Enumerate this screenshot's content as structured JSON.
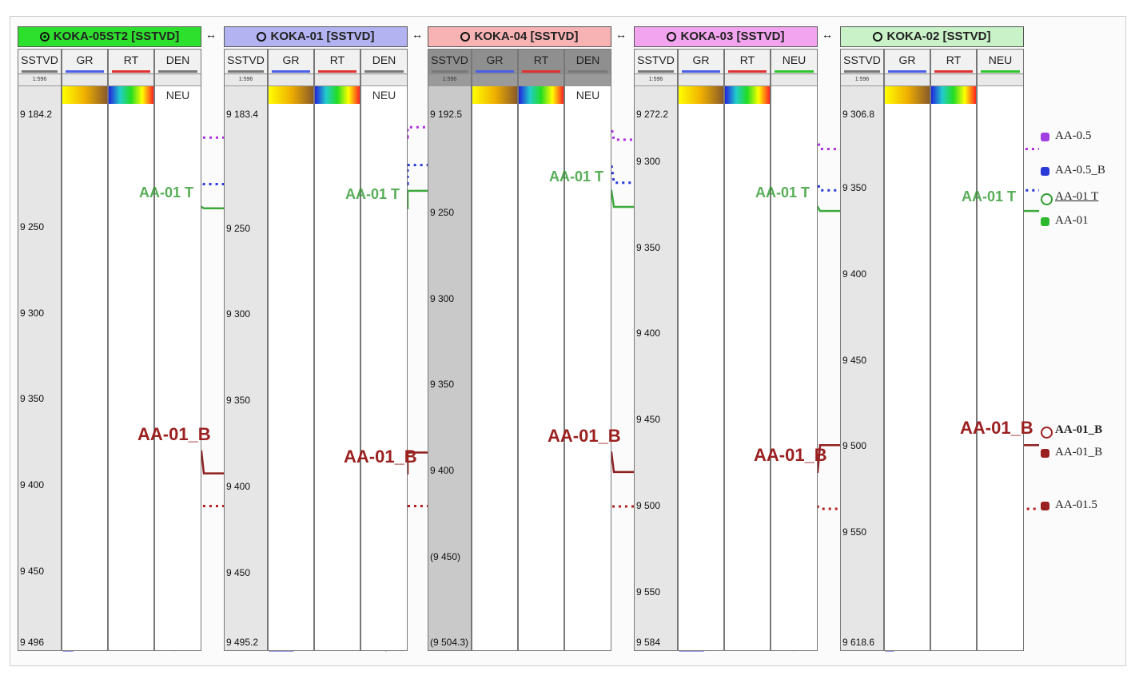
{
  "chart_data": {
    "type": "well-log-correlation",
    "title": "",
    "wells": [
      {
        "name": "KOKA-05ST2 [SSTVD]",
        "header_color": "#2ee02e",
        "symbol": "deviated",
        "tracks": [
          "SSTVD",
          "GR",
          "RT",
          "DEN"
        ],
        "extra_track_label": "NEU",
        "scale_label": "1:596",
        "depth_top": "9 184.2",
        "depth_bottom": "9 496",
        "top_val": 9184.2,
        "bottom_val": 9496,
        "ticks": [
          {
            "label": "9 250",
            "v": 9250
          },
          {
            "label": "9 300",
            "v": 9300
          },
          {
            "label": "9 350",
            "v": 9350
          },
          {
            "label": "9 400",
            "v": 9400
          },
          {
            "label": "9 450",
            "v": 9450
          }
        ],
        "tops": {
          "AA-0.5": 9198,
          "AA-0.5_B": 9224,
          "AA-01 T": 9238,
          "AA-01_B": 9380,
          "AA-01.5": 9412
        }
      },
      {
        "name": "KOKA-01 [SSTVD]",
        "header_color": "#b3b3f2",
        "symbol": "vertical",
        "tracks": [
          "SSTVD",
          "GR",
          "RT",
          "DEN"
        ],
        "extra_track_label": "NEU",
        "scale_label": "1:596",
        "depth_top": "9 183.4",
        "depth_bottom": "9 495.2",
        "top_val": 9183.4,
        "bottom_val": 9495.2,
        "ticks": [
          {
            "label": "9 250",
            "v": 9250
          },
          {
            "label": "9 300",
            "v": 9300
          },
          {
            "label": "9 350",
            "v": 9350
          },
          {
            "label": "9 400",
            "v": 9400
          },
          {
            "label": "9 450",
            "v": 9450
          }
        ],
        "tops": {
          "AA-0.5": 9197,
          "AA-0.5_B": 9224,
          "AA-01 T": 9238,
          "AA-01_B": 9392,
          "AA-01.5": 9411
        }
      },
      {
        "name": "KOKA-04 [SSTVD]",
        "header_color": "#f7b3b3",
        "symbol": "vertical",
        "tracks": [
          "SSTVD",
          "GR",
          "RT",
          "DEN"
        ],
        "extra_track_label": "NEU",
        "scale_label": "1:596",
        "depth_top": "9 192.5",
        "depth_bottom": "(9 504.3)",
        "top_val": 9192.5,
        "bottom_val": 9504.3,
        "ticks": [
          {
            "label": "9 250",
            "v": 9250
          },
          {
            "label": "9 300",
            "v": 9300
          },
          {
            "label": "9 350",
            "v": 9350
          },
          {
            "label": "9 400",
            "v": 9400
          },
          {
            "label": "(9 450)",
            "v": 9450
          }
        ],
        "tops": {
          "AA-0.5": 9200,
          "AA-0.5_B": 9222,
          "AA-01 T": 9237,
          "AA-01_B": 9389
        }
      },
      {
        "name": "KOKA-03 [SSTVD]",
        "header_color": "#f2a5ee",
        "symbol": "vertical",
        "tracks": [
          "SSTVD",
          "GR",
          "RT",
          "NEU"
        ],
        "scale_label": "1:596",
        "depth_top": "9 272.2",
        "depth_bottom": "9 584",
        "top_val": 9272.2,
        "bottom_val": 9584,
        "ticks": [
          {
            "label": "9 300",
            "v": 9300
          },
          {
            "label": "9 350",
            "v": 9350
          },
          {
            "label": "9 400",
            "v": 9400
          },
          {
            "label": "9 450",
            "v": 9450
          },
          {
            "label": "9 500",
            "v": 9500
          },
          {
            "label": "9 550",
            "v": 9550
          }
        ],
        "tops": {
          "AA-0.5": 9287,
          "AA-0.5_B": 9312,
          "AA-01 T": 9326,
          "AA-01_B": 9480,
          "AA-01.5": 9500
        }
      },
      {
        "name": "KOKA-02 [SSTVD]",
        "header_color": "#c9f2c9",
        "symbol": "vertical",
        "tracks": [
          "SSTVD",
          "GR",
          "RT",
          "NEU"
        ],
        "scale_label": "1:596",
        "depth_top": "9 306.8",
        "depth_bottom": "9 618.6",
        "top_val": 9306.8,
        "bottom_val": 9618.6,
        "ticks": [
          {
            "label": "9 350",
            "v": 9350
          },
          {
            "label": "9 400",
            "v": 9400
          },
          {
            "label": "9 450",
            "v": 9450
          },
          {
            "label": "9 500",
            "v": 9500
          },
          {
            "label": "9 550",
            "v": 9550
          }
        ],
        "tops": {
          "AA-0.5": 9327,
          "AA-0.5_B": 9351,
          "AA-01 T": 9363,
          "AA-01_B": 9499,
          "AA-01.5": 9536
        }
      }
    ],
    "top_labels": [
      {
        "name": "AA-01 T",
        "color": "#2e9b2e"
      },
      {
        "name": "AA-01_B",
        "color": "#9b2020"
      }
    ],
    "legend": [
      {
        "label": "AA-0.5",
        "color": "#a23fe0",
        "style": "dotted"
      },
      {
        "label": "AA-0.5_B",
        "color": "#2a3ad8",
        "style": "dotted"
      },
      {
        "label": "AA-01 T",
        "color": "#2e9b2e",
        "style": "solid"
      },
      {
        "label": "AA-01",
        "color": "#2eb82e",
        "style": "marker"
      },
      {
        "label": "AA-01_B",
        "color": "#9b2020",
        "style": "solid"
      },
      {
        "label": "AA-01_B",
        "color": "#9b2020",
        "style": "marker"
      },
      {
        "label": "AA-01.5",
        "color": "#9b2020",
        "style": "dotted"
      }
    ]
  }
}
